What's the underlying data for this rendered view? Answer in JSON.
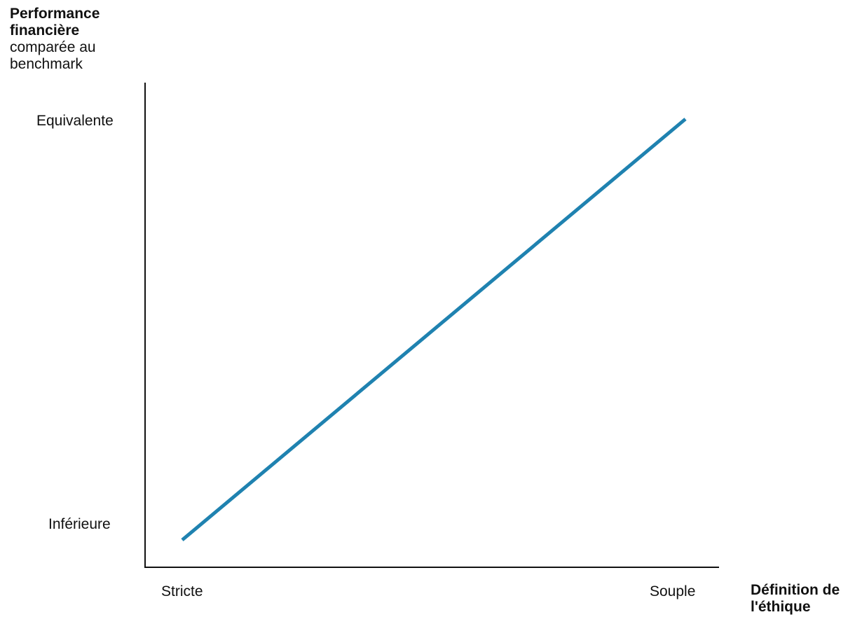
{
  "chart_data": {
    "type": "line",
    "ylabel": {
      "bold_line1": "Performance",
      "bold_line2": "financière",
      "line3": "comparée au",
      "line4": "benchmark"
    },
    "xlabel": {
      "line1": "Définition de",
      "line2": "l'éthique"
    },
    "y_ticks": [
      "Inférieure",
      "Equivalente"
    ],
    "x_ticks": [
      "Stricte",
      "Souple"
    ],
    "series": [
      {
        "color": "#1f82b0",
        "points": [
          {
            "x": "Stricte",
            "y": "Inférieure"
          },
          {
            "x": "Souple",
            "y": "Equivalente"
          }
        ]
      }
    ],
    "grid": false,
    "legend": "none"
  }
}
